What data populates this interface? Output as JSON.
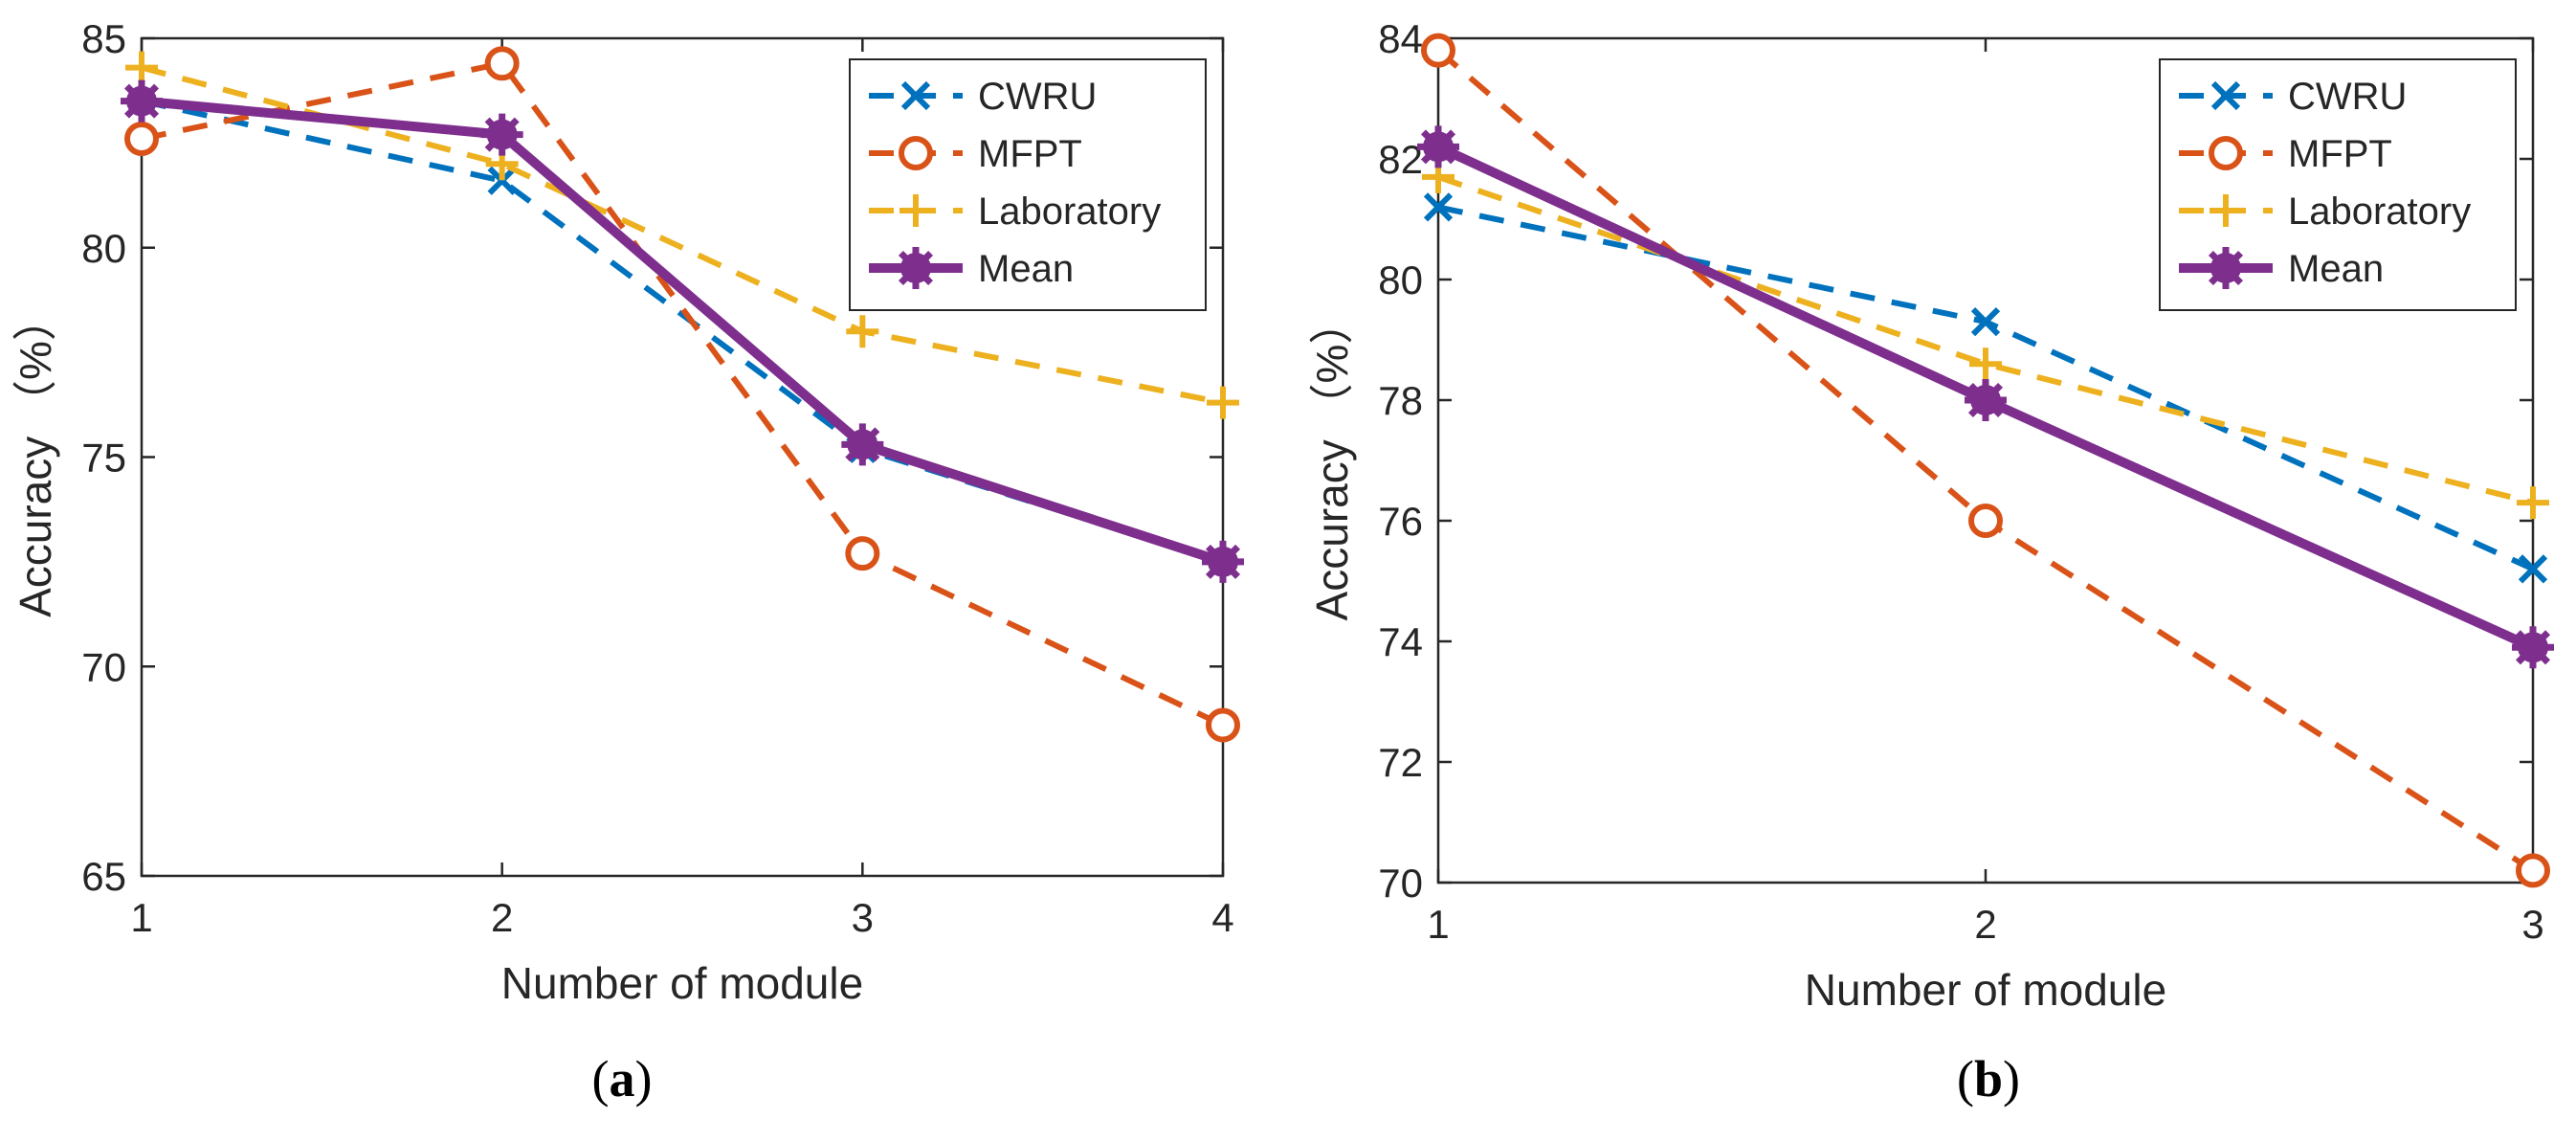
{
  "colors": {
    "cwru": "#0072BD",
    "mfpt": "#D95319",
    "laboratory": "#EDB120",
    "mean": "#7E2F8E",
    "axis": "#262626"
  },
  "chart_data": [
    {
      "type": "line",
      "caption": "(a)",
      "caption_letter": "a",
      "xlabel": "Number of module",
      "ylabel": "Accuracy （%）",
      "x": [
        1,
        2,
        3,
        4
      ],
      "xlim": [
        1,
        4
      ],
      "ylim": [
        65,
        85
      ],
      "xticks": [
        1,
        2,
        3,
        4
      ],
      "yticks": [
        65,
        70,
        75,
        80,
        85
      ],
      "legend_position": "top-right",
      "series": [
        {
          "name": "CWRU",
          "values": [
            83.5,
            81.6,
            75.2,
            72.5
          ],
          "style": "dashed",
          "marker": "x"
        },
        {
          "name": "MFPT",
          "values": [
            82.6,
            84.4,
            72.7,
            68.6
          ],
          "style": "dashed",
          "marker": "circle"
        },
        {
          "name": "Laboratory",
          "values": [
            84.3,
            82.0,
            78.0,
            76.3
          ],
          "style": "dashed",
          "marker": "plus"
        },
        {
          "name": "Mean",
          "values": [
            83.5,
            82.7,
            75.3,
            72.5
          ],
          "style": "solid",
          "marker": "star"
        }
      ]
    },
    {
      "type": "line",
      "caption": "(b)",
      "caption_letter": "b",
      "xlabel": "Number of module",
      "ylabel": "Accuracy （%）",
      "x": [
        1,
        2,
        3
      ],
      "xlim": [
        1,
        3
      ],
      "ylim": [
        70,
        84
      ],
      "xticks": [
        1,
        2,
        3
      ],
      "yticks": [
        70,
        72,
        74,
        76,
        78,
        80,
        82,
        84
      ],
      "legend_position": "top-right",
      "series": [
        {
          "name": "CWRU",
          "values": [
            81.2,
            79.3,
            75.2
          ],
          "style": "dashed",
          "marker": "x"
        },
        {
          "name": "MFPT",
          "values": [
            83.8,
            76.0,
            70.2
          ],
          "style": "dashed",
          "marker": "circle"
        },
        {
          "name": "Laboratory",
          "values": [
            81.7,
            78.6,
            76.3
          ],
          "style": "dashed",
          "marker": "plus"
        },
        {
          "name": "Mean",
          "values": [
            82.2,
            78.0,
            73.9
          ],
          "style": "solid",
          "marker": "star"
        }
      ]
    }
  ]
}
